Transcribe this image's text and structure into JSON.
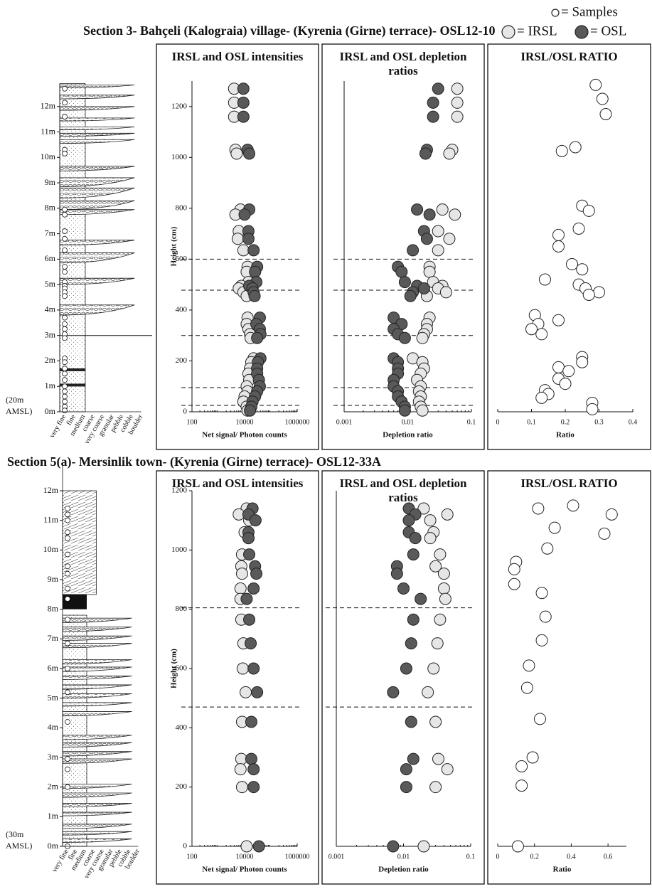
{
  "legend": [
    {
      "label": "= Samples",
      "color": "#ffffff"
    },
    {
      "label": "= IRSL",
      "color": "#e6e6e6"
    },
    {
      "label": "= OSL",
      "color": "#595959"
    }
  ],
  "sections": [
    {
      "title": "Section 3- Bahçeli (Kalograia) village- (Kyrenia (Girne) terrace)- OSL12-10",
      "log": {
        "heights": [
          "0m",
          "1m",
          "2m",
          "3m",
          "4m",
          "5m",
          "6m",
          "7m",
          "8m",
          "9m",
          "10m",
          "11m",
          "12m"
        ],
        "datum": [
          "(20m",
          "AMSL)"
        ],
        "grain_sizes": [
          "very fine",
          "fine",
          "medium",
          "coarse",
          "very coarse",
          "granular",
          "pebble",
          "cobble",
          "boulder"
        ]
      }
    },
    {
      "title": "Section 5(a)- Mersinlik town- (Kyrenia (Girne) terrace)- OSL12-33A",
      "log": {
        "heights": [
          "0m",
          "1m",
          "2m",
          "3m",
          "4m",
          "5m",
          "6m",
          "7m",
          "8m",
          "9m",
          "10m",
          "11m",
          "12m"
        ],
        "datum": [
          "(30m",
          "AMSL)"
        ],
        "grain_sizes": [
          "very fine",
          "fine",
          "medium",
          "coarse",
          "very coarse",
          "granular",
          "pebble",
          "cobble",
          "boulder"
        ]
      }
    }
  ],
  "chart_data": [
    {
      "type": "scatter",
      "title": "IRSL and OSL intensities",
      "xlabel": "Net signal/ Photon counts",
      "ylabel": "Height (cm)",
      "xlog": true,
      "xlim": [
        100,
        1000000
      ],
      "xticks": [
        100,
        10000,
        1000000
      ],
      "ylim": [
        0,
        1300
      ],
      "yticks": [
        0,
        200,
        400,
        600,
        800,
        1000,
        1200
      ],
      "hlines": [
        600,
        478,
        300,
        95,
        25
      ],
      "series": [
        {
          "color": "#e6e6e6",
          "x": [
            4000,
            4000,
            4000,
            4500,
            5000,
            7000,
            4500,
            6000,
            5500,
            9000,
            13000,
            12000,
            14000,
            7500,
            6000,
            9000,
            12000,
            13000,
            12000,
            14000,
            16000,
            17000,
            22000,
            18000,
            16000,
            14000,
            15000,
            12000,
            13000,
            10000,
            9000,
            12000,
            13000
          ],
          "y": [
            1270,
            1215,
            1160,
            1030,
            1015,
            795,
            775,
            710,
            680,
            635,
            570,
            550,
            510,
            495,
            485,
            470,
            455,
            370,
            345,
            325,
            305,
            290,
            210,
            195,
            170,
            150,
            125,
            100,
            80,
            60,
            40,
            20,
            5
          ]
        },
        {
          "color": "#595959",
          "x": [
            9000,
            9000,
            9000,
            13000,
            15000,
            15000,
            10000,
            14000,
            14000,
            22000,
            30000,
            25000,
            28000,
            15000,
            20000,
            22000,
            24000,
            38000,
            28000,
            38000,
            40000,
            30000,
            40000,
            32000,
            30000,
            30000,
            35000,
            38000,
            30000,
            25000,
            20000,
            18000,
            16000
          ],
          "y": [
            1270,
            1215,
            1160,
            1030,
            1015,
            795,
            775,
            710,
            680,
            635,
            570,
            550,
            510,
            495,
            485,
            470,
            455,
            370,
            345,
            325,
            305,
            290,
            210,
            195,
            170,
            150,
            125,
            100,
            80,
            60,
            40,
            20,
            5
          ]
        }
      ]
    },
    {
      "type": "scatter",
      "title": "IRSL and OSL depletion ratios",
      "xlabel": "Depletion ratio",
      "xlog": true,
      "xlim": [
        0.001,
        0.1
      ],
      "xticks": [
        0.001,
        0.01,
        0.1
      ],
      "ylim": [
        0,
        1300
      ],
      "hlines": [
        600,
        478,
        300,
        95,
        25
      ],
      "series": [
        {
          "color": "#e6e6e6",
          "x": [
            0.06,
            0.06,
            0.06,
            0.05,
            0.045,
            0.035,
            0.055,
            0.03,
            0.045,
            0.03,
            0.022,
            0.022,
            0.025,
            0.035,
            0.03,
            0.04,
            0.02,
            0.022,
            0.02,
            0.02,
            0.018,
            0.017,
            0.012,
            0.017,
            0.018,
            0.016,
            0.014,
            0.016,
            0.015,
            0.016,
            0.015,
            0.016,
            0.017
          ],
          "y": [
            1270,
            1215,
            1160,
            1030,
            1015,
            795,
            775,
            710,
            680,
            635,
            570,
            550,
            510,
            495,
            485,
            470,
            455,
            370,
            345,
            325,
            305,
            290,
            210,
            195,
            170,
            150,
            125,
            100,
            80,
            60,
            40,
            20,
            5
          ]
        },
        {
          "color": "#595959",
          "x": [
            0.03,
            0.025,
            0.025,
            0.02,
            0.019,
            0.014,
            0.022,
            0.018,
            0.02,
            0.012,
            0.007,
            0.008,
            0.009,
            0.014,
            0.018,
            0.012,
            0.011,
            0.006,
            0.008,
            0.006,
            0.007,
            0.009,
            0.006,
            0.007,
            0.007,
            0.007,
            0.006,
            0.006,
            0.007,
            0.007,
            0.008,
            0.009,
            0.009
          ],
          "y": [
            1270,
            1215,
            1160,
            1030,
            1015,
            795,
            775,
            710,
            680,
            635,
            570,
            550,
            510,
            495,
            485,
            470,
            455,
            370,
            345,
            325,
            305,
            290,
            210,
            195,
            170,
            150,
            125,
            100,
            80,
            60,
            40,
            20,
            5
          ]
        }
      ]
    },
    {
      "type": "scatter",
      "title": "IRSL/OSL RATIO",
      "xlabel": "Ratio",
      "xlim": [
        0,
        0.4
      ],
      "xticks": [
        0,
        0.1,
        0.2,
        0.3,
        0.4
      ],
      "ylim": [
        0,
        1300
      ],
      "series": [
        {
          "color": "#ffffff",
          "x": [
            0.29,
            0.31,
            0.32,
            0.23,
            0.19,
            0.25,
            0.27,
            0.24,
            0.18,
            0.18,
            0.22,
            0.25,
            0.14,
            0.24,
            0.26,
            0.3,
            0.27,
            0.11,
            0.12,
            0.1,
            0.13,
            0.18,
            0.25,
            0.25,
            0.18,
            0.21,
            0.18,
            0.2,
            0.14,
            0.15,
            0.13,
            0.28,
            0.28
          ],
          "y": [
            1285,
            1230,
            1170,
            1040,
            1025,
            810,
            790,
            720,
            695,
            650,
            580,
            560,
            520,
            500,
            485,
            470,
            460,
            380,
            345,
            325,
            305,
            360,
            215,
            195,
            175,
            160,
            130,
            110,
            85,
            70,
            55,
            35,
            10
          ]
        }
      ]
    },
    {
      "type": "scatter",
      "title": "IRSL and OSL intensities",
      "xlabel": "Net signal/ Photon counts",
      "ylabel": "Height (cm)",
      "xlog": true,
      "xlim": [
        100,
        1000000
      ],
      "xticks": [
        100,
        10000,
        1000000
      ],
      "ylim": [
        0,
        1200
      ],
      "yticks": [
        0,
        200,
        400,
        600,
        800,
        1000,
        1200
      ],
      "hlines": [
        805,
        470
      ],
      "series": [
        {
          "color": "#e6e6e6",
          "x": [
            12000,
            6000,
            15000,
            10000,
            14000,
            8000,
            7500,
            8000,
            7000,
            7000,
            7500,
            9000,
            8500,
            11000,
            8000,
            7500,
            7000,
            8000,
            12000
          ],
          "y": [
            1140,
            1120,
            1100,
            1060,
            1040,
            985,
            945,
            920,
            870,
            835,
            765,
            685,
            600,
            520,
            420,
            295,
            260,
            200,
            0
          ]
        },
        {
          "color": "#595959",
          "x": [
            20000,
            14000,
            26000,
            14000,
            14000,
            15000,
            25000,
            28000,
            22000,
            12000,
            15000,
            17000,
            22000,
            30000,
            18000,
            18000,
            22000,
            22000,
            35000
          ],
          "y": [
            1140,
            1120,
            1100,
            1060,
            1040,
            985,
            945,
            920,
            870,
            835,
            765,
            685,
            600,
            520,
            420,
            295,
            260,
            200,
            0
          ]
        }
      ]
    },
    {
      "type": "scatter",
      "title": "IRSL and OSL depletion ratios",
      "xlabel": "Depletion ratio",
      "xlog": true,
      "xlim": [
        0.001,
        0.1
      ],
      "xticks": [
        0.001,
        0.01,
        0.1
      ],
      "ylim": [
        0,
        1200
      ],
      "hlines": [
        805,
        470
      ],
      "series": [
        {
          "color": "#e6e6e6",
          "x": [
            0.02,
            0.045,
            0.025,
            0.028,
            0.025,
            0.035,
            0.03,
            0.04,
            0.04,
            0.042,
            0.035,
            0.032,
            0.028,
            0.023,
            0.03,
            0.033,
            0.045,
            0.03,
            0.02
          ],
          "y": [
            1140,
            1120,
            1100,
            1060,
            1040,
            985,
            945,
            920,
            870,
            835,
            765,
            685,
            600,
            520,
            420,
            295,
            260,
            200,
            0
          ]
        },
        {
          "color": "#595959",
          "x": [
            0.012,
            0.015,
            0.012,
            0.012,
            0.015,
            0.014,
            0.008,
            0.008,
            0.01,
            0.018,
            0.014,
            0.013,
            0.011,
            0.007,
            0.013,
            0.014,
            0.011,
            0.011,
            0.007
          ],
          "y": [
            1140,
            1120,
            1100,
            1060,
            1040,
            985,
            945,
            920,
            870,
            835,
            765,
            685,
            600,
            520,
            420,
            295,
            260,
            200,
            0
          ]
        }
      ]
    },
    {
      "type": "scatter",
      "title": "IRSL/OSL RATIO",
      "xlabel": "Ratio",
      "xlim": [
        0,
        0.7
      ],
      "xticks": [
        0,
        0.2,
        0.4,
        0.6
      ],
      "ylim": [
        0,
        1200
      ],
      "series": [
        {
          "color": "#ffffff",
          "x": [
            0.22,
            0.41,
            0.62,
            0.58,
            0.31,
            0.27,
            0.1,
            0.09,
            0.09,
            0.24,
            0.26,
            0.24,
            0.17,
            0.16,
            0.23,
            0.19,
            0.13,
            0.13,
            0.11
          ],
          "y": [
            1140,
            1150,
            1120,
            1055,
            1075,
            1005,
            960,
            935,
            885,
            855,
            775,
            695,
            610,
            535,
            430,
            300,
            270,
            205,
            0
          ]
        }
      ]
    }
  ]
}
